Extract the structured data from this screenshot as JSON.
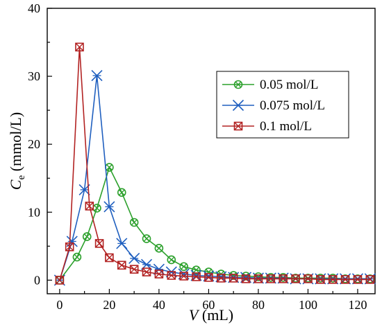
{
  "chart_data": {
    "type": "line",
    "xlabel": {
      "var": "V",
      "unit": " (mL)"
    },
    "ylabel": {
      "var": "C",
      "sub": "e",
      "unit": " (mmol/L)"
    },
    "xlim": [
      -5,
      127
    ],
    "ylim": [
      -2,
      40
    ],
    "xticks": [
      0,
      20,
      40,
      60,
      80,
      100,
      120
    ],
    "yticks": [
      0,
      10,
      20,
      30,
      40
    ],
    "grid": false,
    "legend_position": "top-right",
    "series": [
      {
        "name": "0.05 mol/L",
        "color": "#2ca02c",
        "marker": "circle-x",
        "x": [
          0,
          7,
          11,
          15,
          20,
          25,
          30,
          35,
          40,
          45,
          50,
          55,
          60,
          65,
          70,
          75,
          80,
          85,
          90,
          95,
          100,
          105,
          110,
          115,
          120,
          125
        ],
        "y": [
          0,
          3.4,
          6.4,
          10.6,
          16.6,
          12.9,
          8.5,
          6.1,
          4.7,
          3.0,
          2.0,
          1.5,
          1.2,
          0.9,
          0.7,
          0.6,
          0.5,
          0.4,
          0.4,
          0.3,
          0.3,
          0.3,
          0.3,
          0.2,
          0.2,
          0.2
        ]
      },
      {
        "name": "0.075 mol/L",
        "color": "#1f5fbf",
        "marker": "star-x",
        "x": [
          0,
          5,
          10,
          15,
          20,
          25,
          30,
          35,
          40,
          45,
          50,
          55,
          60,
          65,
          70,
          75,
          80,
          85,
          90,
          95,
          100,
          105,
          110,
          115,
          120,
          125
        ],
        "y": [
          0,
          5.7,
          13.3,
          30.1,
          10.8,
          5.4,
          3.2,
          2.3,
          1.6,
          1.2,
          0.9,
          0.7,
          0.6,
          0.5,
          0.4,
          0.4,
          0.3,
          0.3,
          0.3,
          0.2,
          0.2,
          0.2,
          0.2,
          0.2,
          0.2,
          0.2
        ]
      },
      {
        "name": "0.1 mol/L",
        "color": "#b22222",
        "marker": "square-x",
        "x": [
          0,
          4,
          8,
          12,
          16,
          20,
          25,
          30,
          35,
          40,
          45,
          50,
          55,
          60,
          65,
          70,
          75,
          80,
          85,
          90,
          95,
          100,
          105,
          110,
          115,
          120,
          125
        ],
        "y": [
          0,
          4.9,
          34.3,
          10.9,
          5.4,
          3.3,
          2.2,
          1.6,
          1.2,
          0.9,
          0.7,
          0.6,
          0.5,
          0.4,
          0.3,
          0.3,
          0.2,
          0.2,
          0.2,
          0.2,
          0.2,
          0.2,
          0.1,
          0.1,
          0.1,
          0.1,
          0.1
        ]
      }
    ]
  }
}
